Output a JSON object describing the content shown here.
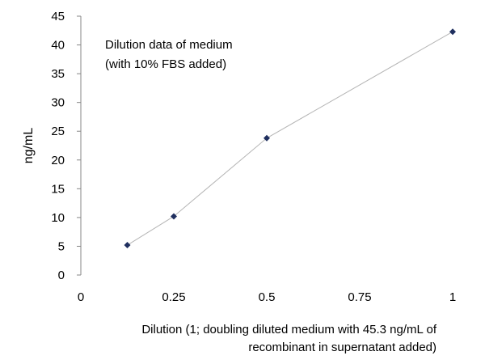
{
  "chart_data": {
    "type": "line",
    "title": "",
    "annotation": [
      "Dilution data of medium",
      "(with 10% FBS added)"
    ],
    "ylabel": "ng/mL",
    "xlabel": [
      "Dilution (1; doubling diluted medium with 45.3 ng/mL of",
      "recombinant in supernatant added)"
    ],
    "xlim": [
      0,
      1
    ],
    "ylim": [
      0,
      45
    ],
    "x_ticks": [
      "0",
      "0.25",
      "0.5",
      "0.75",
      "1"
    ],
    "y_ticks": [
      "0",
      "5",
      "10",
      "15",
      "20",
      "25",
      "30",
      "35",
      "40",
      "45"
    ],
    "grid": false,
    "series": [
      {
        "x": [
          0.125,
          0.25,
          0.5,
          1
        ],
        "y": [
          5.2,
          10.2,
          23.8,
          42.3
        ],
        "marker": "diamond",
        "marker_color": "#1f2f5f",
        "line_color": "#b5b5b5"
      }
    ]
  }
}
